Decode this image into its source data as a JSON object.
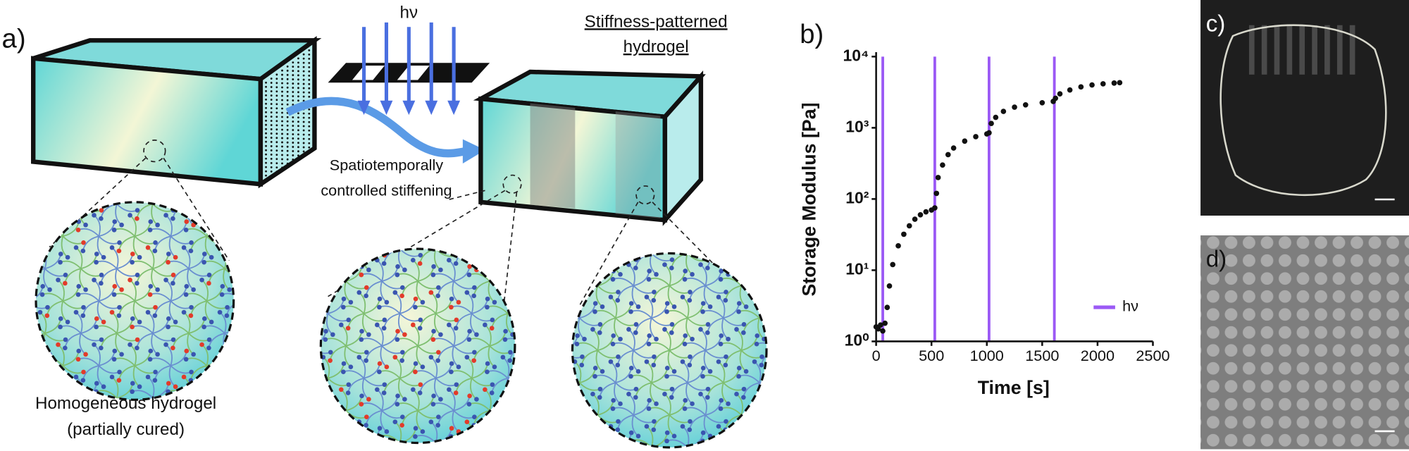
{
  "panel_a": {
    "label": "a)",
    "light": "hν",
    "patterned_title": [
      "Stiffness-patterned",
      "hydrogel"
    ],
    "process": [
      "Spatiotemporally",
      "controlled stiffening"
    ],
    "homogeneous": [
      "Homogeneous hydrogel",
      "(partially cured)"
    ]
  },
  "panel_c_label": "c)",
  "panel_d_label": "d)",
  "chart_data": {
    "type": "scatter",
    "label": "b)",
    "y_label": "Storage Modulus [Pa]",
    "x_label": "Time [s]",
    "x": [
      0,
      20,
      40,
      60,
      80,
      100,
      120,
      150,
      200,
      250,
      300,
      350,
      400,
      450,
      500,
      530,
      545,
      560,
      600,
      650,
      700,
      800,
      900,
      1000,
      1020,
      1040,
      1080,
      1150,
      1250,
      1350,
      1500,
      1600,
      1620,
      1660,
      1750,
      1850,
      1950,
      2050,
      2150,
      2200
    ],
    "values": [
      1.6,
      1.5,
      1.7,
      1.4,
      1.8,
      3,
      6,
      12,
      22,
      32,
      42,
      52,
      60,
      66,
      70,
      75,
      120,
      200,
      300,
      420,
      520,
      650,
      750,
      820,
      850,
      1150,
      1400,
      1700,
      1950,
      2100,
      2250,
      2350,
      2600,
      3000,
      3400,
      3750,
      4000,
      4150,
      4250,
      4300
    ],
    "color": "#111111",
    "y_scale": "log",
    "xlim": [
      0,
      2500
    ],
    "xticks": [
      0,
      500,
      1000,
      1500,
      2000,
      2500
    ],
    "ylim": [
      1,
      10000
    ],
    "yticks": [
      {
        "value": 1,
        "label": "10⁰"
      },
      {
        "value": 10,
        "label": "10¹"
      },
      {
        "value": 100,
        "label": "10²"
      },
      {
        "value": 1000,
        "label": "10³"
      },
      {
        "value": 10000,
        "label": "10⁴"
      }
    ],
    "markers": {
      "name": "hν",
      "color": "#9b59f5",
      "x": [
        60,
        530,
        1020,
        1610
      ]
    },
    "legend": "lower right"
  }
}
